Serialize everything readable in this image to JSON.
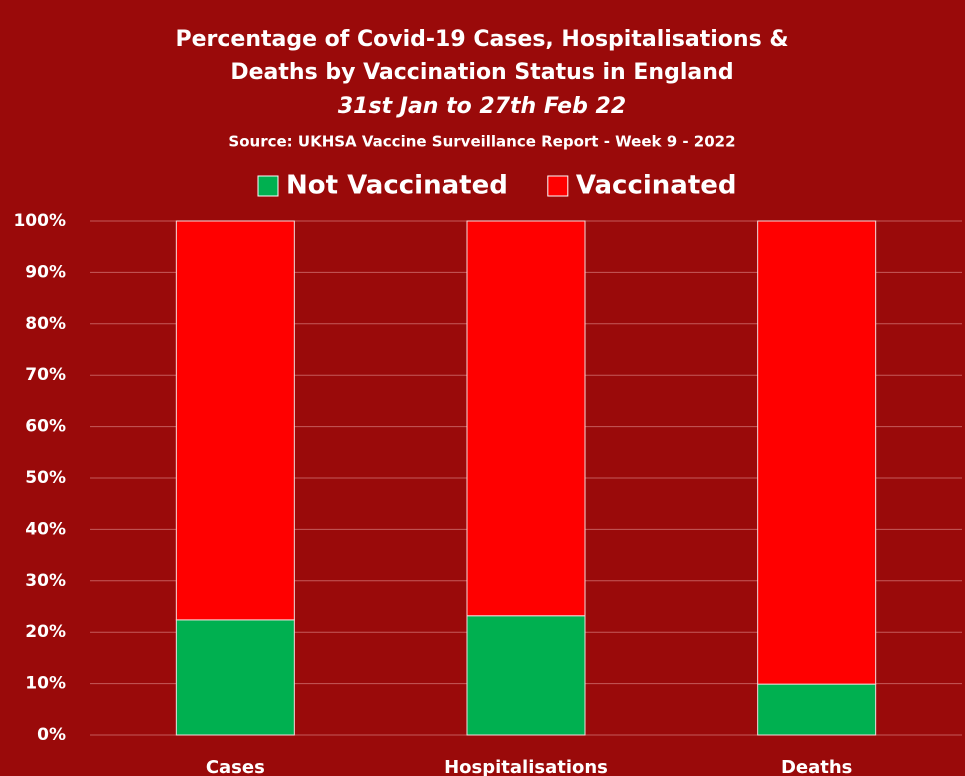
{
  "chart_data": {
    "type": "stacked_bar",
    "title": [
      "Percentage of Covid-19 Cases, Hospitalisations &",
      "Deaths by Vaccination Status in England"
    ],
    "subtitle": "31st Jan to 27th Feb 22",
    "source": "Source: UKHSA Vaccine Surveillance Report - Week 9 - 2022",
    "categories": [
      "Cases",
      "Hospitalisations",
      "Deaths"
    ],
    "series": [
      {
        "name": "Not Vaccinated",
        "color": "#00b050",
        "values": [
          22.4,
          23.2,
          9.9
        ]
      },
      {
        "name": "Vaccinated",
        "color": "#ff0000",
        "values": [
          77.6,
          76.8,
          90.1
        ]
      }
    ],
    "ylim": [
      0,
      100
    ],
    "yticks": [
      {
        "value": 0,
        "label": "0%"
      },
      {
        "value": 10,
        "label": "10%"
      },
      {
        "value": 20,
        "label": "20%"
      },
      {
        "value": 30,
        "label": "30%"
      },
      {
        "value": 40,
        "label": "40%"
      },
      {
        "value": 50,
        "label": "50%"
      },
      {
        "value": 60,
        "label": "60%"
      },
      {
        "value": 70,
        "label": "70%"
      },
      {
        "value": 80,
        "label": "80%"
      },
      {
        "value": 90,
        "label": "90%"
      },
      {
        "value": 100,
        "label": "100%"
      }
    ],
    "grid": true,
    "legend": "top"
  }
}
